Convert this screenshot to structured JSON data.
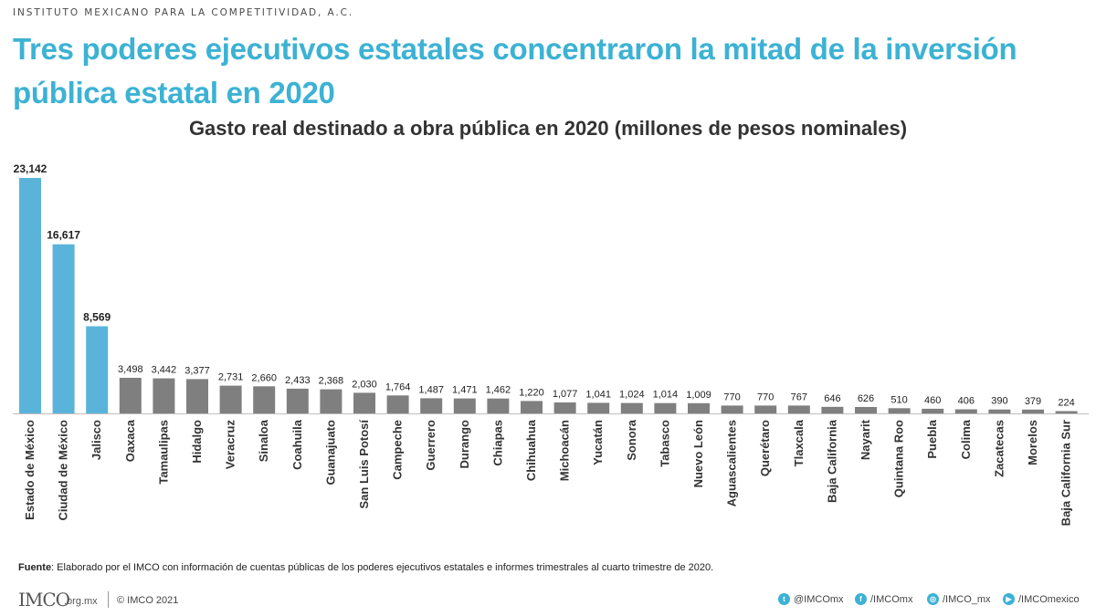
{
  "header": {
    "org": "INSTITUTO MEXICANO PARA LA COMPETITIVIDAD, A.C.",
    "title": "Tres poderes ejecutivos estatales concentraron la mitad de la inversión pública estatal en 2020"
  },
  "colors": {
    "highlight": "#5ab4da",
    "default": "#7f7f7f",
    "title": "#3cb2d4"
  },
  "chart_data": {
    "type": "bar",
    "title": "Gasto real destinado a obra pública en 2020 (millones de pesos nominales)",
    "xlabel": "",
    "ylabel": "",
    "ylim": [
      0,
      23142
    ],
    "grid": false,
    "categories": [
      "Estado de México",
      "Ciudad de México",
      "Jalisco",
      "Oaxaca",
      "Tamaulipas",
      "Hidalgo",
      "Veracruz",
      "Sinaloa",
      "Coahuila",
      "Guanajuato",
      "San Luis Potosí",
      "Campeche",
      "Guerrero",
      "Durango",
      "Chiapas",
      "Chihuahua",
      "Michoacán",
      "Yucatán",
      "Sonora",
      "Tabasco",
      "Nuevo León",
      "Aguascalientes",
      "Querétaro",
      "Tlaxcala",
      "Baja California",
      "Nayarit",
      "Quintana Roo",
      "Puebla",
      "Colima",
      "Zacatecas",
      "Morelos",
      "Baja California Sur"
    ],
    "values": [
      23142,
      16617,
      8569,
      3498,
      3442,
      3377,
      2731,
      2660,
      2433,
      2368,
      2030,
      1764,
      1487,
      1471,
      1462,
      1220,
      1077,
      1041,
      1024,
      1014,
      1009,
      770,
      770,
      767,
      646,
      626,
      510,
      460,
      406,
      390,
      379,
      224
    ],
    "value_labels": [
      "23,142",
      "16,617",
      "8,569",
      "3,498",
      "3,442",
      "3,377",
      "2,731",
      "2,660",
      "2,433",
      "2,368",
      "2,030",
      "1,764",
      "1,487",
      "1,471",
      "1,462",
      "1,220",
      "1,077",
      "1,041",
      "1,024",
      "1,014",
      "1,009",
      "770",
      "770",
      "767",
      "646",
      "626",
      "510",
      "460",
      "406",
      "390",
      "379",
      "224"
    ],
    "highlighted": [
      "Estado de México",
      "Ciudad de México",
      "Jalisco"
    ]
  },
  "source": {
    "label": "Fuente",
    "text": ": Elaborado por el IMCO con información de cuentas públicas de los poderes ejecutivos estatales e informes trimestrales al cuarto trimestre de 2020."
  },
  "footer": {
    "logo": "IMCO",
    "domain": ".org.mx",
    "copyright": "© IMCO 2021",
    "twitter": "@IMCOmx",
    "facebook": "/IMCOmx",
    "instagram": "/IMCO_mx",
    "youtube": "/IMCOmexico"
  }
}
